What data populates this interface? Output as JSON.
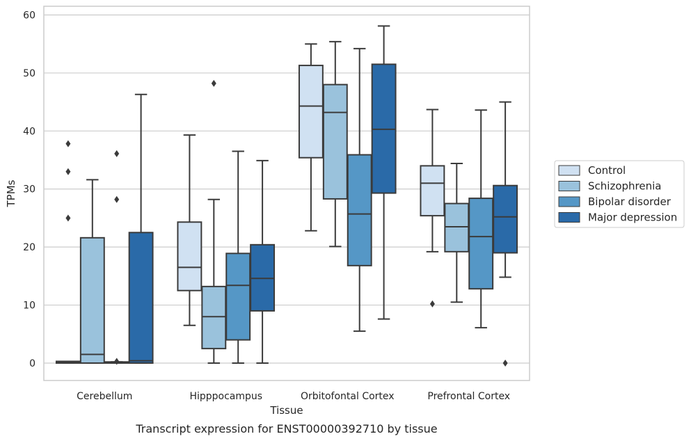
{
  "chart_data": {
    "type": "box",
    "caption": "Transcript expression for ENST00000392710 by tissue",
    "xlabel": "Tissue",
    "ylabel": "TPMs",
    "ylim": [
      -3,
      61.5
    ],
    "yticks": [
      0,
      10,
      20,
      30,
      40,
      50,
      60
    ],
    "grid": "horizontal",
    "legend_position": "right",
    "categories": [
      "Cerebellum",
      "Hipppocampus",
      "Orbitofontal Cortex",
      "Prefrontal Cortex"
    ],
    "series": [
      {
        "name": "Control",
        "color": "#d0e1f2",
        "boxes": [
          {
            "whislo": 0,
            "q1": 0,
            "med": 0.1,
            "q3": 0.3,
            "whishi": 0.3,
            "fliers": [
              25,
              33,
              37.8
            ]
          },
          {
            "whislo": 6.5,
            "q1": 12.5,
            "med": 16.5,
            "q3": 24.3,
            "whishi": 39.3,
            "fliers": []
          },
          {
            "whislo": 22.8,
            "q1": 35.4,
            "med": 44.3,
            "q3": 51.3,
            "whishi": 55,
            "fliers": []
          },
          {
            "whislo": 19.2,
            "q1": 25.4,
            "med": 31,
            "q3": 34,
            "whishi": 43.7,
            "fliers": [
              10.2
            ]
          }
        ]
      },
      {
        "name": "Schizophrenia",
        "color": "#9ac2dc",
        "boxes": [
          {
            "whislo": 0,
            "q1": 0,
            "med": 1.5,
            "q3": 21.6,
            "whishi": 31.6,
            "fliers": []
          },
          {
            "whislo": 0,
            "q1": 2.5,
            "med": 8,
            "q3": 13.2,
            "whishi": 28.2,
            "fliers": [
              48.2
            ]
          },
          {
            "whislo": 20.1,
            "q1": 28.3,
            "med": 43.2,
            "q3": 48,
            "whishi": 55.4,
            "fliers": []
          },
          {
            "whislo": 10.5,
            "q1": 19.2,
            "med": 23.5,
            "q3": 27.5,
            "whishi": 34.4,
            "fliers": []
          }
        ]
      },
      {
        "name": "Bipolar disorder",
        "color": "#5597c6",
        "boxes": [
          {
            "whislo": 0,
            "q1": 0,
            "med": 0.1,
            "q3": 0.2,
            "whishi": 0.2,
            "fliers": [
              0.3,
              28.2,
              36.1
            ]
          },
          {
            "whislo": 0,
            "q1": 4,
            "med": 13.4,
            "q3": 18.9,
            "whishi": 36.5,
            "fliers": []
          },
          {
            "whislo": 5.5,
            "q1": 16.8,
            "med": 25.7,
            "q3": 35.9,
            "whishi": 54.2,
            "fliers": []
          },
          {
            "whislo": 6.1,
            "q1": 12.8,
            "med": 21.8,
            "q3": 28.4,
            "whishi": 43.6,
            "fliers": []
          }
        ]
      },
      {
        "name": "Major depression",
        "color": "#2a6aa8",
        "boxes": [
          {
            "whislo": 0,
            "q1": 0,
            "med": 0.4,
            "q3": 22.5,
            "whishi": 46.3,
            "fliers": []
          },
          {
            "whislo": 0,
            "q1": 9,
            "med": 14.6,
            "q3": 20.4,
            "whishi": 34.9,
            "fliers": []
          },
          {
            "whislo": 7.6,
            "q1": 29.3,
            "med": 40.3,
            "q3": 51.5,
            "whishi": 58.1,
            "fliers": []
          },
          {
            "whislo": 14.8,
            "q1": 19,
            "med": 25.2,
            "q3": 30.6,
            "whishi": 45,
            "fliers": [
              0
            ]
          }
        ]
      }
    ]
  }
}
